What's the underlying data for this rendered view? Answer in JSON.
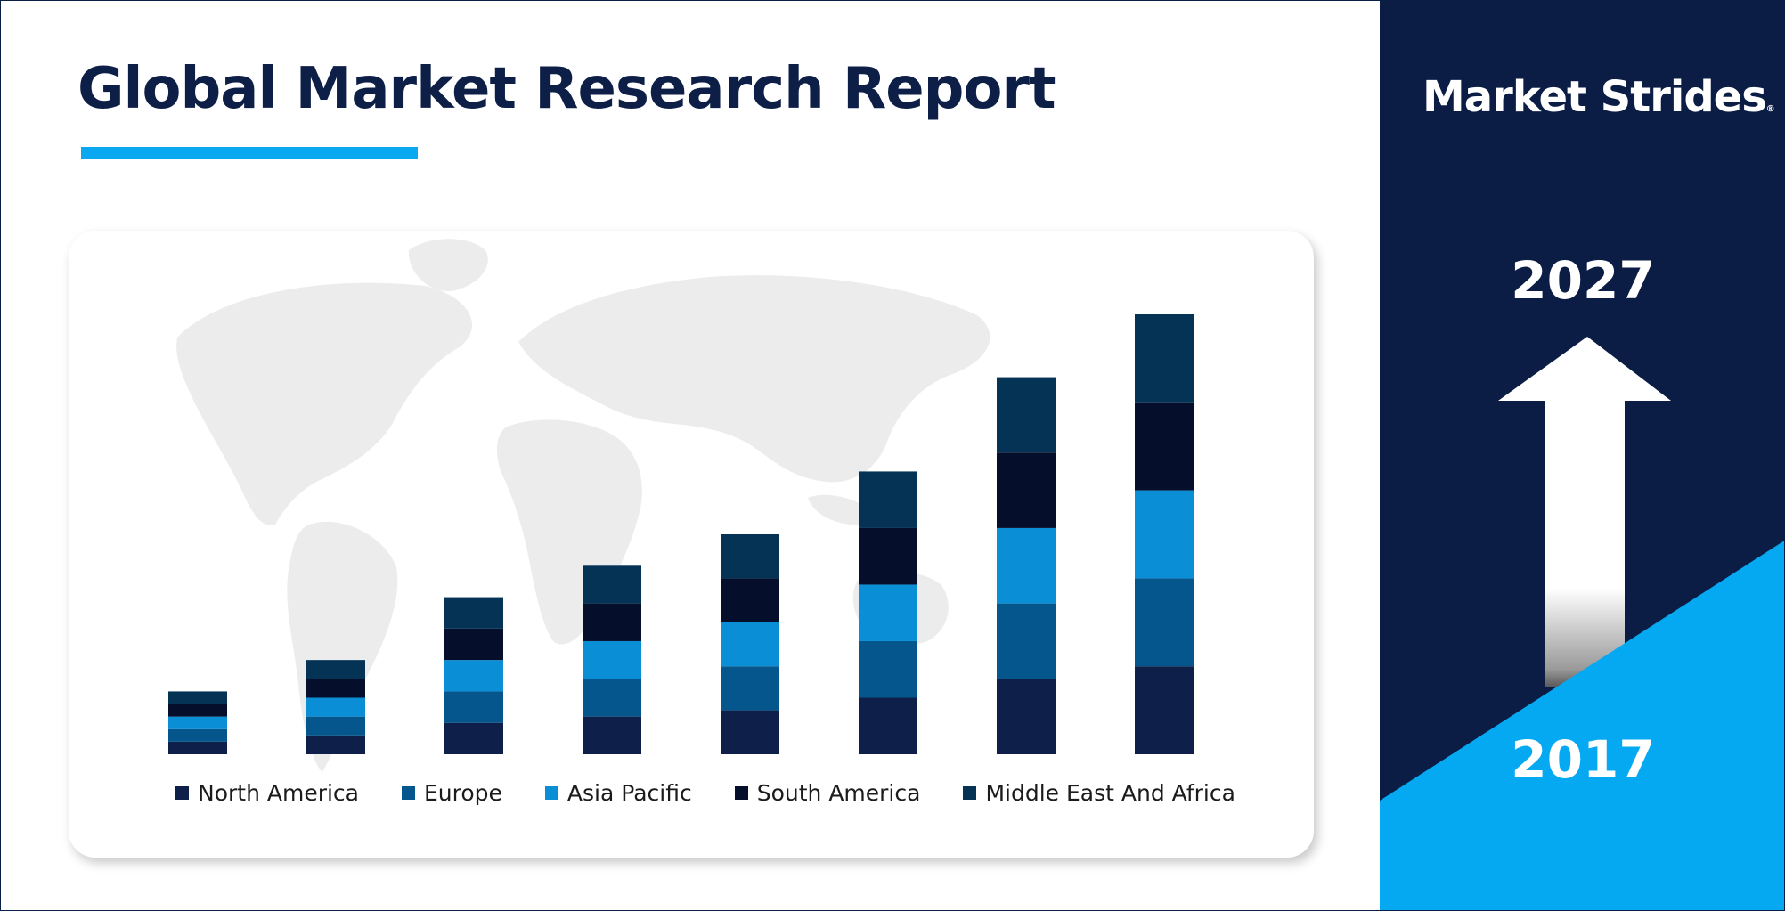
{
  "header": {
    "title": "Global Market Research Report"
  },
  "brand": {
    "name": "Market Strides",
    "mark": "®"
  },
  "timeline": {
    "start_year": "2017",
    "end_year": "2027"
  },
  "colors": {
    "navy_dark": "#0b1c45",
    "accent_blue": "#0aa8f0",
    "north_america": "#0e1f4a",
    "europe": "#05568c",
    "asia_pacific": "#0a8fd6",
    "south_america": "#050f2b",
    "middle_east_africa": "#053356",
    "map": "#ececec"
  },
  "chart_data": {
    "type": "bar",
    "stacked": true,
    "categories": [
      "",
      "",
      "",
      "",
      "",
      "",
      "",
      ""
    ],
    "series": [
      {
        "name": "North America",
        "values": [
          10,
          15,
          25,
          30,
          35,
          45,
          60,
          70
        ]
      },
      {
        "name": "Europe",
        "values": [
          10,
          15,
          25,
          30,
          35,
          45,
          60,
          70
        ]
      },
      {
        "name": "Asia Pacific",
        "values": [
          10,
          15,
          25,
          30,
          35,
          45,
          60,
          70
        ]
      },
      {
        "name": "South America",
        "values": [
          10,
          15,
          25,
          30,
          35,
          45,
          60,
          70
        ]
      },
      {
        "name": "Middle East And Africa",
        "values": [
          10,
          15,
          25,
          30,
          35,
          45,
          60,
          70
        ]
      }
    ],
    "title": "",
    "xlabel": "",
    "ylabel": "",
    "ylim": [
      0,
      350
    ],
    "grid": false,
    "axes_visible": false,
    "legend_position": "bottom"
  }
}
